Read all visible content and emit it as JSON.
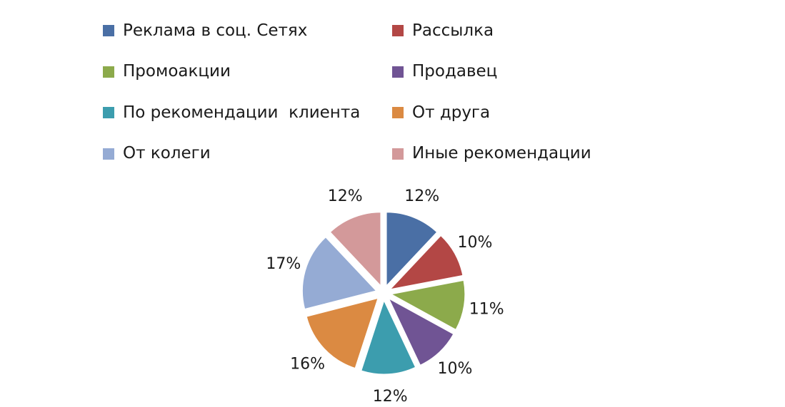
{
  "chart_data": {
    "type": "pie",
    "exploded": true,
    "legend_placement": "top",
    "title": "",
    "slices": [
      {
        "name": "Реклама в соц. Сетях",
        "value": 12,
        "label": "12%",
        "color": "#4A6FA5"
      },
      {
        "name": "Рассылка",
        "value": 10,
        "label": "10%",
        "color": "#B34745"
      },
      {
        "name": "Промоакции",
        "value": 11,
        "label": "11%",
        "color": "#8CAA4B"
      },
      {
        "name": "Продавец",
        "value": 10,
        "label": "10%",
        "color": "#705494"
      },
      {
        "name": "По рекомендации  клиента",
        "value": 12,
        "label": "12%",
        "color": "#3C9DAE"
      },
      {
        "name": "От друга",
        "value": 16,
        "label": "16%",
        "color": "#DB8A42"
      },
      {
        "name": "От колеги",
        "value": 17,
        "label": "17%",
        "color": "#95ABD4"
      },
      {
        "name": "Иные рекомендации",
        "value": 12,
        "label": "12%",
        "color": "#D3999A"
      }
    ]
  }
}
